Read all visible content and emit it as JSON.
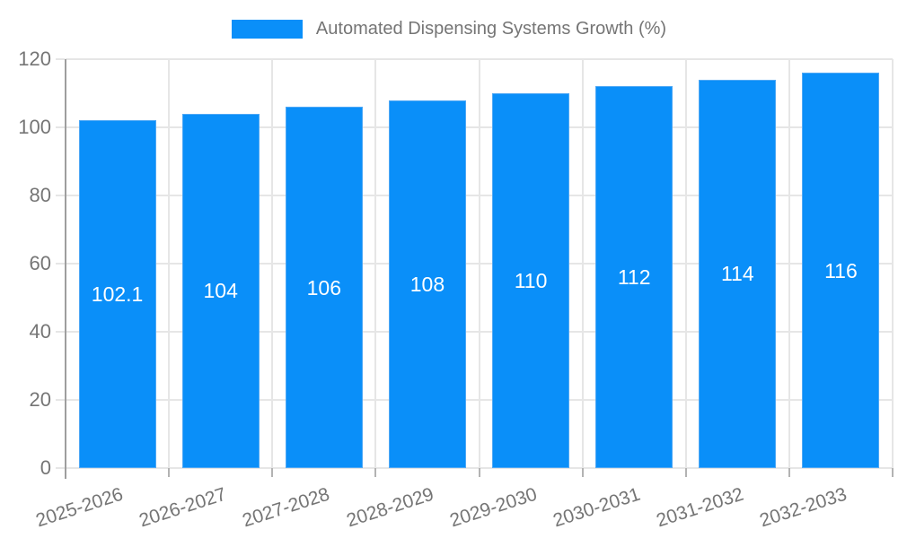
{
  "chart_data": {
    "type": "bar",
    "title": "Automated Dispensing Systems Growth (%)",
    "categories": [
      "2025-2026",
      "2026-2027",
      "2027-2028",
      "2028-2029",
      "2029-2030",
      "2030-2031",
      "2031-2032",
      "2032-2033"
    ],
    "values": [
      102.1,
      104,
      106,
      108,
      110,
      112,
      114,
      116
    ],
    "bar_labels": [
      "102.1",
      "104",
      "106",
      "108",
      "110",
      "112",
      "114",
      "116"
    ],
    "xlabel": "",
    "ylabel": "",
    "ylim": [
      0,
      120
    ],
    "yticks": [
      0,
      20,
      40,
      60,
      80,
      100,
      120
    ],
    "grid": true,
    "legend_position": "top",
    "colors": {
      "bar": "#0a8ff9",
      "bar_border": "#4fa8f5",
      "value_label": "#ffffff",
      "grid_line": "#e6e6e6",
      "axis_line": "#9e9e9e",
      "tick_mark": "#b3b3b3",
      "axis_text": "#757575",
      "background": "#ffffff"
    }
  }
}
